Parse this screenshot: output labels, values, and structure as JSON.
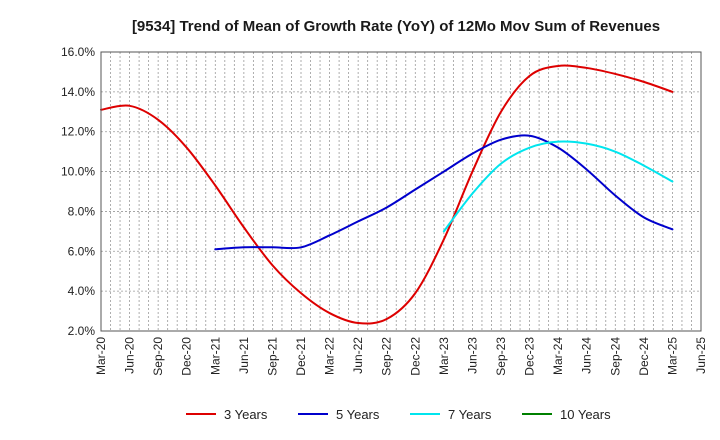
{
  "chart_data": {
    "type": "line",
    "title": "[9534]  Trend of Mean of Growth Rate (YoY) of 12Mo Mov Sum of Revenues",
    "xlabel": "",
    "ylabel": "",
    "ylim": [
      2.0,
      16.0
    ],
    "y_ticks": [
      "2.0%",
      "4.0%",
      "6.0%",
      "8.0%",
      "10.0%",
      "12.0%",
      "14.0%",
      "16.0%"
    ],
    "y_tick_values": [
      2,
      4,
      6,
      8,
      10,
      12,
      14,
      16
    ],
    "categories": [
      "Mar-20",
      "Jun-20",
      "Sep-20",
      "Dec-20",
      "Mar-21",
      "Jun-21",
      "Sep-21",
      "Dec-21",
      "Mar-22",
      "Jun-22",
      "Sep-22",
      "Dec-22",
      "Mar-23",
      "Jun-23",
      "Sep-23",
      "Dec-23",
      "Mar-24",
      "Jun-24",
      "Sep-24",
      "Dec-24",
      "Mar-25",
      "Jun-25"
    ],
    "grid": true,
    "legend_position": "bottom",
    "series": [
      {
        "name": "3 Years",
        "color": "#dd0000",
        "values": [
          13.1,
          13.3,
          12.6,
          11.2,
          9.3,
          7.2,
          5.3,
          3.9,
          2.9,
          2.4,
          2.6,
          3.9,
          6.6,
          10.0,
          13.0,
          14.8,
          15.3,
          15.2,
          14.9,
          14.5,
          14.0,
          null
        ]
      },
      {
        "name": "5 Years",
        "color": "#0000cc",
        "values": [
          null,
          null,
          null,
          null,
          6.1,
          6.2,
          6.2,
          6.2,
          6.8,
          7.5,
          8.2,
          9.1,
          10.0,
          10.9,
          11.6,
          11.8,
          11.2,
          10.1,
          8.8,
          7.7,
          7.1,
          null
        ]
      },
      {
        "name": "7 Years",
        "color": "#00e5ee",
        "values": [
          null,
          null,
          null,
          null,
          null,
          null,
          null,
          null,
          null,
          null,
          null,
          null,
          7.0,
          8.9,
          10.4,
          11.2,
          11.5,
          11.4,
          11.0,
          10.3,
          9.5,
          null
        ]
      },
      {
        "name": "10 Years",
        "color": "#008000",
        "values": [
          null,
          null,
          null,
          null,
          null,
          null,
          null,
          null,
          null,
          null,
          null,
          null,
          null,
          null,
          null,
          null,
          null,
          null,
          null,
          null,
          null,
          null
        ]
      }
    ]
  }
}
